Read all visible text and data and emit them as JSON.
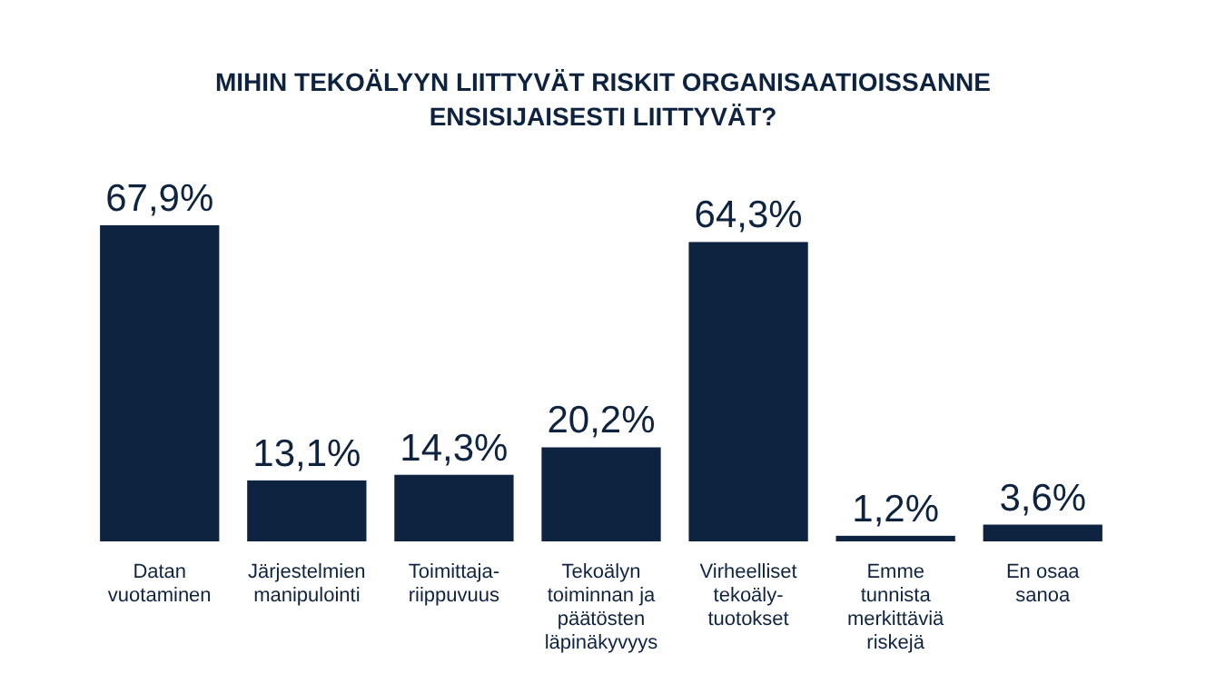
{
  "chart_data": {
    "type": "bar",
    "title": "MIHIN TEKOÄLYYN LIITTYVÄT RISKIT ORGANISAATIOISSANNE\nENSISIJAISESTI LIITTYVÄT?",
    "categories": [
      "Datan\nvuotaminen",
      "Järjestelmien\nmanipulointi",
      "Toimittaja-\nriippuvuus",
      "Tekoälyn\ntoiminnan ja\npäätösten\nläpinäkyvyys",
      "Virheelliset\ntekoäly-\ntuotokset",
      "Emme\ntunnista\nmerkittäviä\nriskejä",
      "En osaa\nsanoa"
    ],
    "values": [
      67.9,
      13.1,
      14.3,
      20.2,
      64.3,
      1.2,
      3.6
    ],
    "value_labels": [
      "67,9%",
      "13,1%",
      "14,3%",
      "20,2%",
      "64,3%",
      "1,2%",
      "3,6%"
    ],
    "color": "#0e2340"
  }
}
